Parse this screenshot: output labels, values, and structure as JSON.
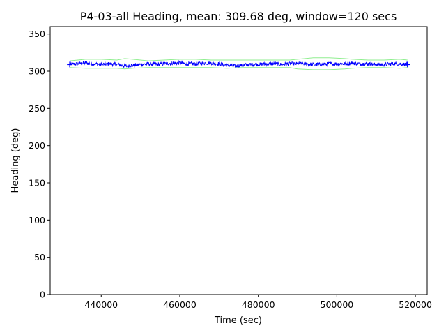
{
  "chart_data": {
    "type": "line",
    "title": "P4-03-all Heading, mean: 309.68 deg, window=120 secs",
    "xlabel": "Time (sec)",
    "ylabel": "Heading (deg)",
    "xlim": [
      427000,
      523000
    ],
    "ylim": [
      0,
      360
    ],
    "xticks": [
      440000,
      460000,
      480000,
      500000,
      520000
    ],
    "yticks": [
      0,
      50,
      100,
      150,
      200,
      250,
      300,
      350
    ],
    "grid": false,
    "legend": "none",
    "x_range": [
      432000,
      518000
    ],
    "mean": 309.68,
    "colors": {
      "heading": "#0000ff",
      "envelope": "#90ee90",
      "marker": "#0000ff"
    },
    "series": [
      {
        "role": "heading",
        "x": [
          432000,
          434000,
          436000,
          438000,
          440000,
          442000,
          444000,
          446000,
          448000,
          450000,
          452000,
          454000,
          456000,
          458000,
          460000,
          462000,
          464000,
          466000,
          468000,
          470000,
          472000,
          474000,
          476000,
          478000,
          480000,
          482000,
          484000,
          486000,
          488000,
          490000,
          492000,
          494000,
          496000,
          498000,
          500000,
          502000,
          504000,
          506000,
          508000,
          510000,
          512000,
          514000,
          516000,
          518000
        ],
        "y": [
          309,
          310,
          311,
          310,
          309,
          310,
          309,
          307,
          308,
          309,
          310,
          309,
          310,
          311,
          311,
          310,
          310,
          311,
          311,
          310,
          308,
          307,
          308,
          309,
          309,
          310,
          310,
          309,
          310,
          310,
          310,
          309,
          309,
          310,
          310,
          310,
          311,
          310,
          310,
          309,
          309,
          310,
          310,
          309
        ]
      },
      {
        "role": "upper-envelope",
        "x": [
          432000,
          436000,
          440000,
          444000,
          446000,
          448000,
          452000,
          456000,
          460000,
          464000,
          468000,
          472000,
          476000,
          480000,
          484000,
          488000,
          490000,
          494000,
          498000,
          502000,
          504000,
          508000,
          512000,
          516000,
          518000
        ],
        "y": [
          314,
          316,
          316,
          315,
          317,
          316,
          314,
          315,
          316,
          316,
          315,
          315,
          315,
          315,
          315,
          315,
          316,
          318,
          318,
          317,
          316,
          315,
          315,
          316,
          315
        ]
      },
      {
        "role": "lower-envelope",
        "x": [
          432000,
          436000,
          440000,
          444000,
          446000,
          448000,
          452000,
          456000,
          460000,
          464000,
          468000,
          472000,
          476000,
          480000,
          484000,
          488000,
          490000,
          494000,
          498000,
          502000,
          504000,
          508000,
          512000,
          516000,
          518000
        ],
        "y": [
          305,
          304,
          304,
          304,
          303,
          304,
          305,
          305,
          305,
          305,
          305,
          304,
          305,
          305,
          305,
          305,
          303,
          302,
          302,
          303,
          304,
          305,
          305,
          304,
          305
        ]
      }
    ]
  }
}
